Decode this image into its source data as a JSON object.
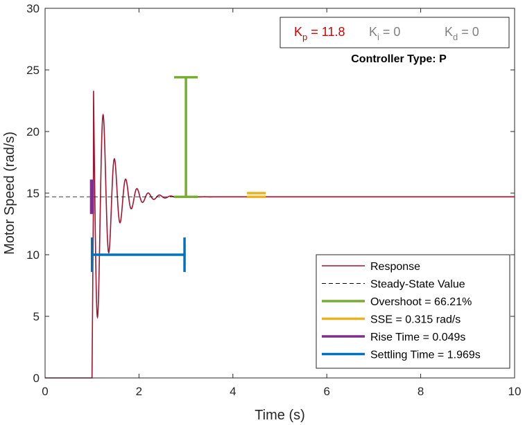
{
  "chart_data": {
    "type": "line",
    "xlabel": "Time (s)",
    "ylabel": "Motor Speed (rad/s)",
    "xlim": [
      0,
      10
    ],
    "ylim": [
      0,
      30
    ],
    "xticks": [
      0,
      2,
      4,
      6,
      8,
      10
    ],
    "yticks": [
      0,
      5,
      10,
      15,
      20,
      25,
      30
    ],
    "xtick_labels": [
      "0",
      "2",
      "4",
      "6",
      "8",
      "10"
    ],
    "ytick_labels": [
      "0",
      "5",
      "10",
      "15",
      "20",
      "25",
      "30"
    ],
    "grid": false,
    "response": {
      "step_time": 1.0,
      "steady_state": 14.7,
      "peak": 24.4,
      "peak_time": 1.12,
      "min_after_peak": 8.3,
      "min_time": 1.25,
      "oscillation_period": 0.24,
      "settled_by": 3.0
    },
    "steady_state_value": 14.7,
    "overshoot_marker": {
      "x": 3.0,
      "y_low": 14.7,
      "y_high": 24.4
    },
    "sse_marker": {
      "x_start": 4.3,
      "x_end": 4.7,
      "y_values": [
        14.7,
        15.0
      ]
    },
    "rise_time_marker": {
      "x": 1.0,
      "y_low": 13.3,
      "y_high": 16.1
    },
    "settling_time_marker": {
      "x_start": 1.0,
      "x_end": 2.97,
      "y": 10.0,
      "cap_half": 1.4
    },
    "legend": {
      "placement": "bottom-right",
      "entries": [
        {
          "label": "Response",
          "color": "#A2142F",
          "style": "solid",
          "width": 1.5
        },
        {
          "label": "Steady-State Value",
          "color": "#000000",
          "style": "dashed",
          "width": 1
        },
        {
          "label": "Overshoot = 66.21%",
          "color": "#77AC30",
          "style": "solid",
          "width": 3.5
        },
        {
          "label": "SSE = 0.315 rad/s",
          "color": "#EDB120",
          "style": "solid",
          "width": 3.5
        },
        {
          "label": "Rise Time = 0.049s",
          "color": "#7E2F8E",
          "style": "solid",
          "width": 3.5
        },
        {
          "label": "Settling Time = 1.969s",
          "color": "#0072BD",
          "style": "solid",
          "width": 3.5
        }
      ]
    },
    "gains": {
      "kp": {
        "symbol": "K",
        "sub": "p",
        "value": "= 11.8",
        "color": "#D40000"
      },
      "ki": {
        "symbol": "K",
        "sub": "i",
        "value": "= 0",
        "color": "#808080"
      },
      "kd": {
        "symbol": "K",
        "sub": "d",
        "value": "= 0",
        "color": "#808080"
      }
    },
    "controller_type_label": "Controller Type: P"
  }
}
